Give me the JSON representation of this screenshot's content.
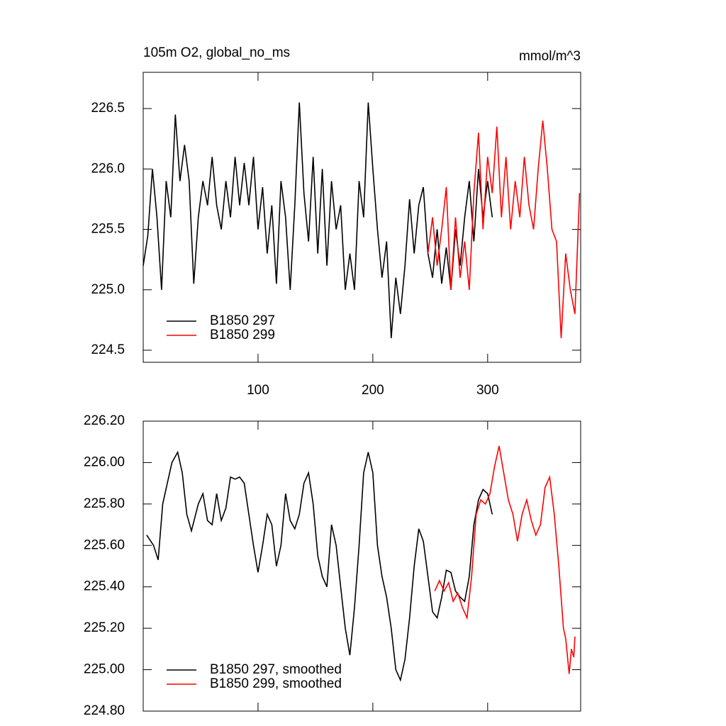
{
  "chart_data": [
    {
      "type": "line",
      "title": "105m O2, global_no_ms",
      "unit_label": "mmol/m^3",
      "xlim": [
        0,
        381
      ],
      "ylim": [
        224.4,
        226.8
      ],
      "xticks": [
        100,
        200,
        300
      ],
      "show_xtick_labels": true,
      "yticks": [
        224.5,
        {
          "value": 225,
          "label": "225.0"
        },
        225.5,
        {
          "value": 226,
          "label": "226.0"
        },
        226.5
      ],
      "legend": "lower left",
      "series": [
        {
          "name": "B1850 297",
          "color": "#000000",
          "x": [
            0,
            4,
            8,
            12,
            16,
            20,
            24,
            28,
            32,
            36,
            40,
            44,
            48,
            52,
            56,
            60,
            64,
            68,
            72,
            76,
            80,
            84,
            88,
            92,
            96,
            100,
            104,
            108,
            112,
            116,
            120,
            124,
            128,
            132,
            136,
            140,
            144,
            148,
            152,
            156,
            160,
            164,
            168,
            172,
            176,
            180,
            184,
            188,
            192,
            196,
            200,
            204,
            208,
            212,
            216,
            220,
            224,
            228,
            232,
            236,
            240,
            244,
            248,
            252,
            256,
            260,
            264,
            268,
            272,
            276,
            280,
            284,
            288,
            292,
            296,
            300,
            304
          ],
          "values": [
            225.2,
            225.45,
            226.0,
            225.6,
            225.0,
            225.9,
            225.6,
            226.45,
            225.9,
            226.2,
            225.9,
            225.05,
            225.6,
            225.9,
            225.7,
            226.1,
            225.7,
            225.5,
            225.9,
            225.6,
            226.1,
            225.7,
            226.05,
            225.7,
            226.1,
            225.5,
            225.85,
            225.3,
            225.7,
            225.05,
            225.9,
            225.6,
            225.0,
            225.7,
            226.55,
            225.8,
            225.4,
            226.1,
            225.3,
            226.0,
            225.2,
            225.9,
            225.5,
            225.7,
            225.0,
            225.3,
            225.0,
            225.9,
            225.6,
            226.55,
            226.0,
            225.5,
            225.1,
            225.4,
            224.6,
            225.1,
            224.8,
            225.2,
            225.75,
            225.3,
            225.7,
            225.85,
            225.3,
            225.1,
            225.5,
            225.05,
            225.35,
            225.0,
            225.5,
            225.2,
            225.6,
            225.9,
            225.4,
            226.0,
            225.6,
            225.9,
            225.6
          ]
        },
        {
          "name": "B1850 299",
          "color": "#ff0000",
          "x": [
            248,
            252,
            256,
            260,
            264,
            268,
            272,
            276,
            280,
            284,
            288,
            292,
            296,
            300,
            304,
            308,
            312,
            316,
            320,
            324,
            328,
            332,
            336,
            340,
            344,
            348,
            352,
            356,
            360,
            364,
            368,
            372,
            376,
            380
          ],
          "values": [
            225.3,
            225.6,
            225.2,
            225.5,
            225.85,
            225.0,
            225.6,
            225.1,
            225.4,
            225.0,
            225.8,
            226.3,
            225.5,
            226.1,
            225.8,
            226.35,
            225.6,
            226.1,
            225.5,
            225.9,
            225.6,
            226.1,
            225.7,
            225.5,
            226.0,
            226.4,
            226.0,
            225.5,
            225.4,
            224.6,
            225.3,
            225.0,
            224.8,
            225.8
          ]
        }
      ]
    },
    {
      "type": "line",
      "xlim": [
        0,
        381
      ],
      "ylim": [
        224.8,
        226.2
      ],
      "xticks": [
        100,
        200,
        300
      ],
      "show_xtick_labels": false,
      "yticks": [
        {
          "value": 224.8,
          "label": "224.80"
        },
        {
          "value": 225,
          "label": "225.00"
        },
        {
          "value": 225.2,
          "label": "225.20"
        },
        {
          "value": 225.4,
          "label": "225.40"
        },
        {
          "value": 225.6,
          "label": "225.60"
        },
        {
          "value": 225.8,
          "label": "225.80"
        },
        {
          "value": 226,
          "label": "226.00"
        },
        {
          "value": 226.2,
          "label": "226.20"
        }
      ],
      "legend": "lower left",
      "series": [
        {
          "name": "B1850 297, smoothed",
          "color": "#000000",
          "x": [
            3,
            9,
            13,
            17,
            21,
            25,
            30,
            34,
            38,
            42,
            48,
            52,
            56,
            60,
            64,
            68,
            72,
            76,
            80,
            84,
            88,
            92,
            96,
            100,
            104,
            108,
            112,
            116,
            120,
            124,
            128,
            132,
            136,
            140,
            144,
            148,
            152,
            156,
            160,
            164,
            168,
            172,
            176,
            180,
            184,
            188,
            192,
            196,
            200,
            204,
            208,
            212,
            216,
            220,
            224,
            228,
            232,
            236,
            240,
            244,
            248,
            252,
            256,
            260,
            264,
            268,
            272,
            276,
            280,
            284,
            288,
            292,
            296,
            300,
            304
          ],
          "values": [
            225.65,
            225.6,
            225.53,
            225.8,
            225.9,
            226.0,
            226.05,
            225.95,
            225.75,
            225.67,
            225.8,
            225.85,
            225.72,
            225.7,
            225.85,
            225.72,
            225.78,
            225.93,
            225.92,
            225.93,
            225.9,
            225.75,
            225.6,
            225.47,
            225.6,
            225.75,
            225.7,
            225.5,
            225.6,
            225.85,
            225.72,
            225.68,
            225.75,
            225.9,
            225.95,
            225.8,
            225.55,
            225.45,
            225.4,
            225.7,
            225.6,
            225.4,
            225.2,
            225.07,
            225.3,
            225.6,
            225.95,
            226.05,
            225.95,
            225.6,
            225.45,
            225.35,
            225.2,
            225.0,
            224.95,
            225.05,
            225.25,
            225.5,
            225.68,
            225.62,
            225.45,
            225.28,
            225.25,
            225.35,
            225.48,
            225.47,
            225.38,
            225.35,
            225.33,
            225.45,
            225.7,
            225.82,
            225.87,
            225.85,
            225.75
          ]
        },
        {
          "name": "B1850 299, smoothed",
          "color": "#ff0000",
          "x": [
            254,
            258,
            262,
            266,
            270,
            274,
            278,
            282,
            286,
            290,
            294,
            298,
            302,
            306,
            310,
            314,
            318,
            322,
            326,
            330,
            334,
            338,
            342,
            346,
            350,
            354,
            358,
            362,
            366,
            368,
            371,
            373,
            375,
            376
          ],
          "values": [
            225.38,
            225.43,
            225.38,
            225.42,
            225.33,
            225.37,
            225.3,
            225.25,
            225.45,
            225.75,
            225.82,
            225.8,
            225.85,
            225.98,
            226.08,
            225.95,
            225.82,
            225.75,
            225.62,
            225.75,
            225.82,
            225.72,
            225.65,
            225.7,
            225.88,
            225.93,
            225.75,
            225.5,
            225.2,
            225.15,
            224.98,
            225.1,
            225.06,
            225.16
          ]
        }
      ]
    }
  ]
}
